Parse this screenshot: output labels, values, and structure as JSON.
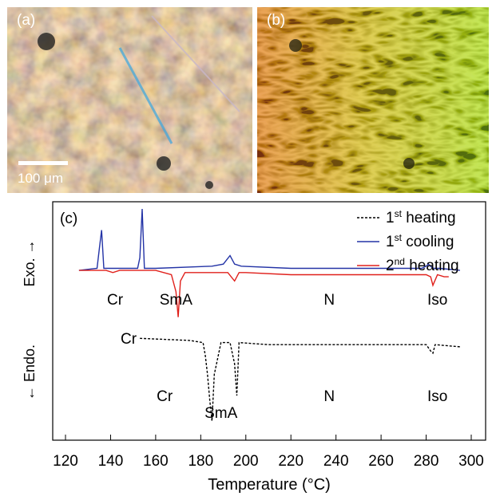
{
  "panels": {
    "a": {
      "label": "(a)",
      "scale_label": "100 μm"
    },
    "b": {
      "label": "(b)"
    }
  },
  "chart_data": {
    "type": "line",
    "panel_label": "(c)",
    "xlabel": "Temperature (°C)",
    "ylabel_top": "Exo. →",
    "ylabel_bottom": "← Endo.",
    "xlim": [
      120,
      300
    ],
    "ylim": [
      0,
      100
    ],
    "xticks": [
      "120",
      "140",
      "160",
      "180",
      "200",
      "220",
      "240",
      "260",
      "280",
      "300"
    ],
    "legend_position": "top-right",
    "series": [
      {
        "name": "1st heating",
        "color": "#000000",
        "dash": true,
        "x": [
          153,
          175,
          181,
          182,
          183,
          184,
          185,
          186,
          189,
          193,
          195,
          196,
          197,
          210,
          250,
          280,
          282,
          283,
          284,
          295
        ],
        "y": [
          39,
          38,
          37,
          31,
          22,
          10,
          0,
          22,
          37,
          37,
          27,
          12,
          37,
          36,
          36,
          36,
          33,
          32,
          36,
          35
        ]
      },
      {
        "name": "1st cooling",
        "color": "#2333a6",
        "dash": false,
        "x": [
          126,
          134,
          135,
          136,
          137,
          140,
          152,
          153,
          154,
          155,
          160,
          185,
          190,
          193,
          195,
          198,
          220,
          250,
          278,
          280,
          281,
          283,
          286,
          295
        ],
        "y": [
          71,
          72,
          81,
          90,
          72,
          72,
          72,
          77,
          100,
          72,
          72,
          73,
          74,
          78,
          74,
          73,
          72,
          72,
          72,
          73,
          74,
          72,
          72,
          71
        ]
      },
      {
        "name": "2nd heating",
        "color": "#e0201b",
        "dash": false,
        "x": [
          126,
          138,
          141,
          144,
          160,
          167,
          169,
          170,
          171,
          173,
          180,
          192,
          195,
          197,
          200,
          220,
          250,
          280,
          282,
          283,
          285,
          288,
          290
        ],
        "y": [
          71,
          71,
          70,
          71,
          71,
          69,
          61,
          49,
          66,
          70,
          70,
          70,
          66,
          70,
          70,
          69,
          69,
          69,
          68,
          64,
          69,
          68,
          68
        ]
      }
    ],
    "annotations": {
      "upper": [
        {
          "text": "Cr",
          "x": 142
        },
        {
          "text": "SmA",
          "x": 169
        },
        {
          "text": "N",
          "x": 237
        },
        {
          "text": "Iso",
          "x": 285
        },
        {
          "text": "Cr",
          "x": 148,
          "row": "below"
        }
      ],
      "lower": [
        {
          "text": "Cr",
          "x": 164
        },
        {
          "text": "SmA",
          "x": 189,
          "row": "below"
        },
        {
          "text": "N",
          "x": 237
        },
        {
          "text": "Iso",
          "x": 285
        }
      ]
    }
  }
}
